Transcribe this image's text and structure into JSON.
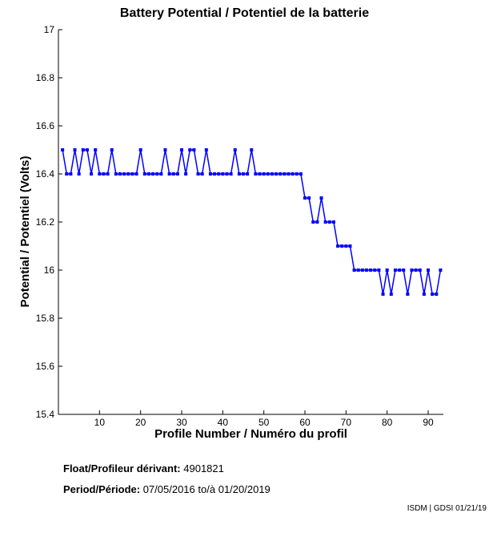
{
  "chart_data": {
    "type": "line",
    "title": "Battery Potential / Potentiel de la batterie",
    "xlabel": "Profile Number / Numéro du profil",
    "ylabel": "Potential / Potentiel (Volts)",
    "xlim": [
      0,
      93.7
    ],
    "ylim": [
      15.4,
      17
    ],
    "xticks": [
      10,
      20,
      30,
      40,
      50,
      60,
      70,
      80,
      90
    ],
    "yticks": [
      15.4,
      15.6,
      15.8,
      16,
      16.2,
      16.4,
      16.6,
      16.8,
      17
    ],
    "ytick_labels": [
      "15.4",
      "15.6",
      "15.8",
      "16",
      "16.2",
      "16.4",
      "16.6",
      "16.8",
      "17"
    ],
    "grid": false,
    "series": [
      {
        "name": "Battery potential",
        "color": "#0000ff",
        "values": [
          16.5,
          16.4,
          16.4,
          16.5,
          16.4,
          16.5,
          16.5,
          16.4,
          16.5,
          16.4,
          16.4,
          16.4,
          16.5,
          16.4,
          16.4,
          16.4,
          16.4,
          16.4,
          16.4,
          16.5,
          16.4,
          16.4,
          16.4,
          16.4,
          16.4,
          16.5,
          16.4,
          16.4,
          16.4,
          16.5,
          16.4,
          16.5,
          16.5,
          16.4,
          16.4,
          16.5,
          16.4,
          16.4,
          16.4,
          16.4,
          16.4,
          16.4,
          16.5,
          16.4,
          16.4,
          16.4,
          16.5,
          16.4,
          16.4,
          16.4,
          16.4,
          16.4,
          16.4,
          16.4,
          16.4,
          16.4,
          16.4,
          16.4,
          16.4,
          16.3,
          16.3,
          16.2,
          16.2,
          16.3,
          16.2,
          16.2,
          16.2,
          16.1,
          16.1,
          16.1,
          16.1,
          16.0,
          16.0,
          16.0,
          16.0,
          16.0,
          16.0,
          16.0,
          15.9,
          16.0,
          15.9,
          16.0,
          16.0,
          16.0,
          15.9,
          16.0,
          16.0,
          16.0,
          15.9,
          16.0,
          15.9,
          15.9,
          16.0
        ]
      }
    ]
  },
  "info": {
    "float_label": "Float/Profileur dérivant:",
    "float_value": "4901821",
    "period_label": "Period/Période:",
    "period_start": "07/05/2016",
    "period_sep": "to/à",
    "period_end": "01/20/2019"
  },
  "credit": "ISDM | GDSI 01/21/19"
}
